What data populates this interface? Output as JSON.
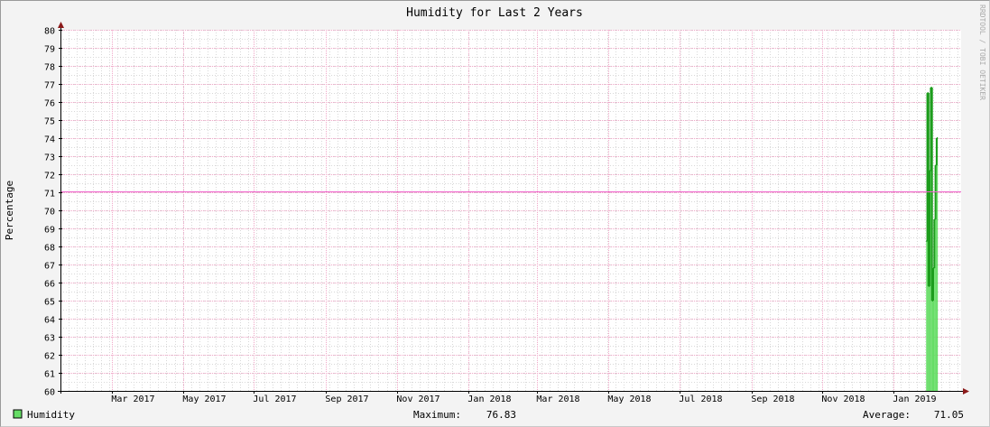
{
  "chart_data": {
    "type": "area",
    "title": "Humidity for Last 2 Years",
    "ylabel": "Percentage",
    "xlabel": "",
    "ylim": [
      60,
      80
    ],
    "yticks": [
      60,
      61,
      62,
      63,
      64,
      65,
      66,
      67,
      68,
      69,
      70,
      71,
      72,
      73,
      74,
      75,
      76,
      77,
      78,
      79,
      80
    ],
    "xlim": [
      "2017-01-16",
      "2019-02-28"
    ],
    "xticks": [
      {
        "date": "2017-03-01",
        "label": "Mar 2017"
      },
      {
        "date": "2017-05-01",
        "label": "May 2017"
      },
      {
        "date": "2017-07-01",
        "label": "Jul 2017"
      },
      {
        "date": "2017-09-01",
        "label": "Sep 2017"
      },
      {
        "date": "2017-11-01",
        "label": "Nov 2017"
      },
      {
        "date": "2018-01-01",
        "label": "Jan 2018"
      },
      {
        "date": "2018-03-01",
        "label": "Mar 2018"
      },
      {
        "date": "2018-05-01",
        "label": "May 2018"
      },
      {
        "date": "2018-07-01",
        "label": "Jul 2018"
      },
      {
        "date": "2018-09-01",
        "label": "Sep 2018"
      },
      {
        "date": "2018-11-01",
        "label": "Nov 2018"
      },
      {
        "date": "2019-01-01",
        "label": "Jan 2019"
      }
    ],
    "grid": true,
    "series": [
      {
        "name": "Humidity",
        "color": "#66dd66",
        "line_color": "#1c9c1c",
        "points": [
          {
            "x": "2019-01-29",
            "y": 68.3
          },
          {
            "x": "2019-01-30",
            "y": 76.5
          },
          {
            "x": "2019-01-31",
            "y": 65.8
          },
          {
            "x": "2019-02-01",
            "y": 72.2
          },
          {
            "x": "2019-02-02",
            "y": 76.8
          },
          {
            "x": "2019-02-03",
            "y": 65.0
          },
          {
            "x": "2019-02-04",
            "y": 66.8
          },
          {
            "x": "2019-02-05",
            "y": 69.5
          },
          {
            "x": "2019-02-06",
            "y": 72.5
          },
          {
            "x": "2019-02-07",
            "y": 74.0
          }
        ]
      }
    ],
    "reference_lines": [
      {
        "name": "Average",
        "value": 71.05,
        "color": "#ee66cc"
      }
    ]
  },
  "legend": {
    "series_label": "Humidity",
    "series_color": "#66dd66",
    "maximum_label": "Maximum:",
    "maximum_value": "76.83",
    "average_label": "Average:",
    "average_value": "71.05"
  },
  "watermark": "RRDTOOL / TOBI OETIKER"
}
